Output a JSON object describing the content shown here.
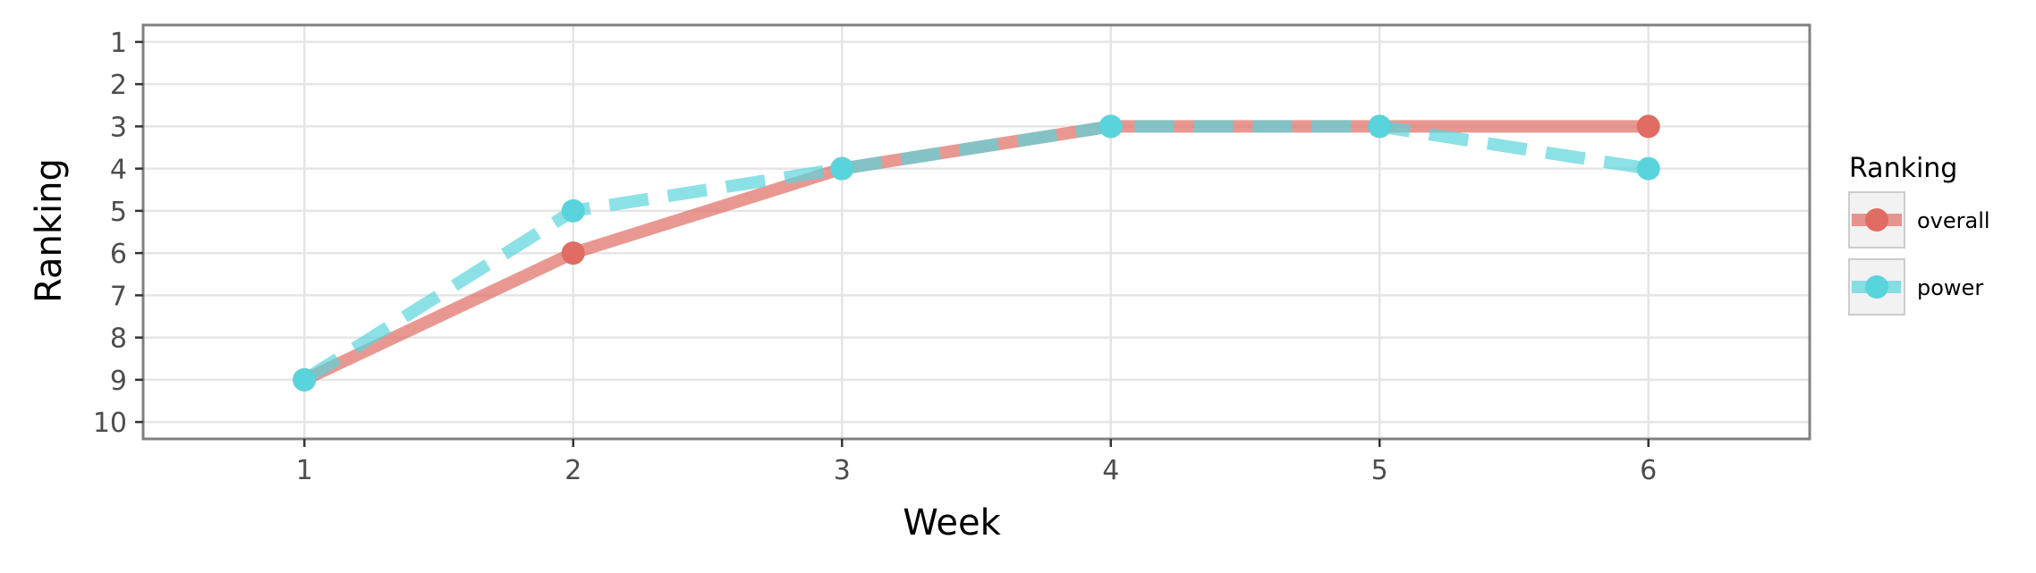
{
  "chart_data": {
    "type": "line",
    "title": "",
    "xlabel": "Week",
    "ylabel": "Ranking",
    "x": [
      1,
      2,
      3,
      4,
      5,
      6
    ],
    "xlim": [
      0.4,
      6.6
    ],
    "ylim": [
      10.4,
      0.6
    ],
    "y_reversed": true,
    "x_ticks": [
      "1",
      "2",
      "3",
      "4",
      "5",
      "6"
    ],
    "y_ticks": [
      "1",
      "2",
      "3",
      "4",
      "5",
      "6",
      "7",
      "8",
      "9",
      "10"
    ],
    "grid": true,
    "legend": {
      "title": "Ranking",
      "placement": "right"
    },
    "series": [
      {
        "name": "overall",
        "values": [
          9,
          6,
          4,
          3,
          3,
          3
        ],
        "color": "#E06C63",
        "line_style": "solid"
      },
      {
        "name": "power",
        "values": [
          9,
          5,
          4,
          3,
          3,
          4
        ],
        "color": "#5AD4DC",
        "line_style": "dashed"
      }
    ]
  },
  "colors": {
    "panel_border": "#808080",
    "grid": "#E5E5E5",
    "legend_key_bg": "#F2F2F2"
  }
}
